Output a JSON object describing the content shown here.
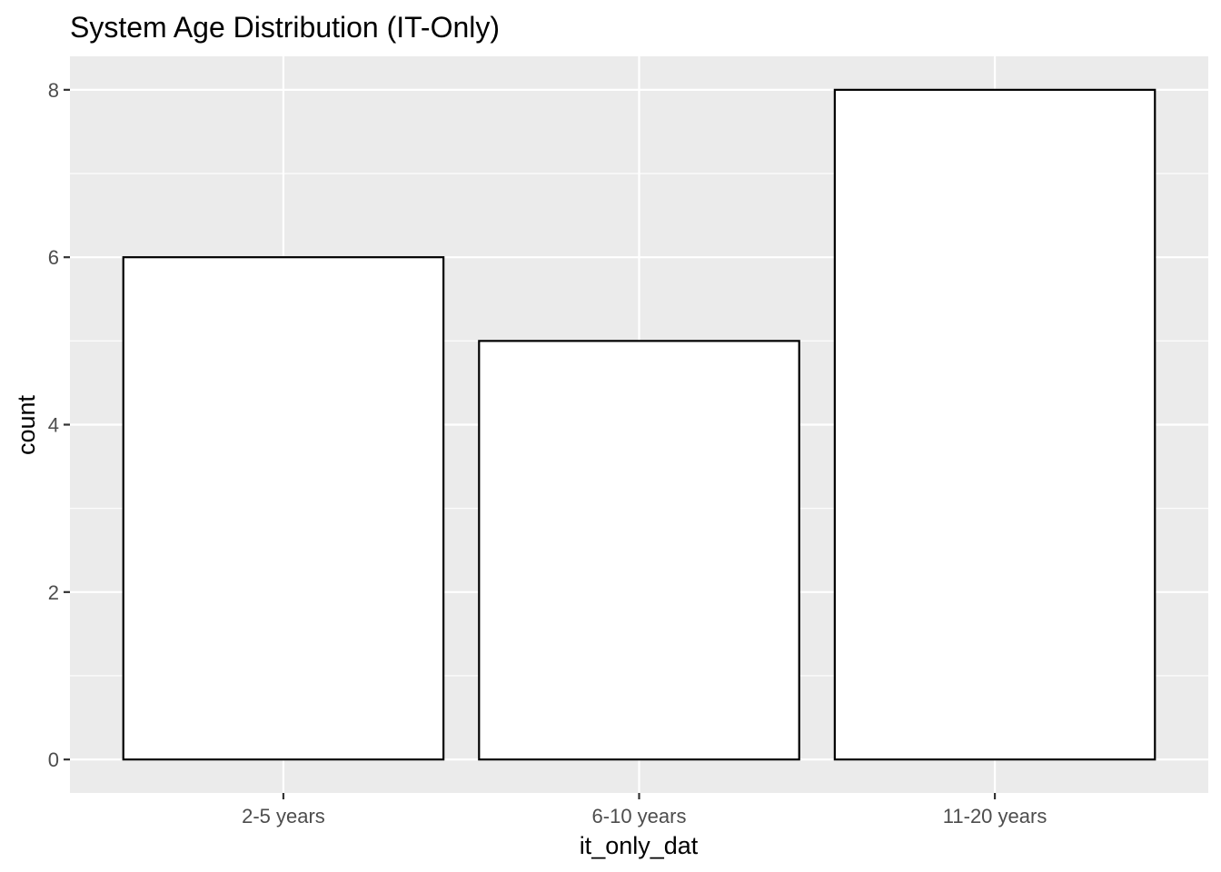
{
  "chart_data": {
    "type": "bar",
    "title": "System Age Distribution (IT-Only)",
    "xlabel": "it_only_dat",
    "ylabel": "count",
    "categories": [
      "2-5 years",
      "6-10 years",
      "11-20 years"
    ],
    "values": [
      6,
      5,
      8
    ],
    "ylim": [
      -0.4,
      8.4
    ],
    "yticks": [
      0,
      2,
      4,
      6,
      8
    ],
    "ytick_labels": [
      "0",
      "2",
      "4",
      "6",
      "8"
    ],
    "grid": true,
    "legend": "none",
    "colors": {
      "panel_background": "#ebebeb",
      "grid_line": "#ffffff",
      "bar_fill": "#ffffff",
      "bar_outline": "#000000",
      "tick_label": "#4d4d4d",
      "tick_mark": "#333333",
      "text": "#000000"
    }
  }
}
